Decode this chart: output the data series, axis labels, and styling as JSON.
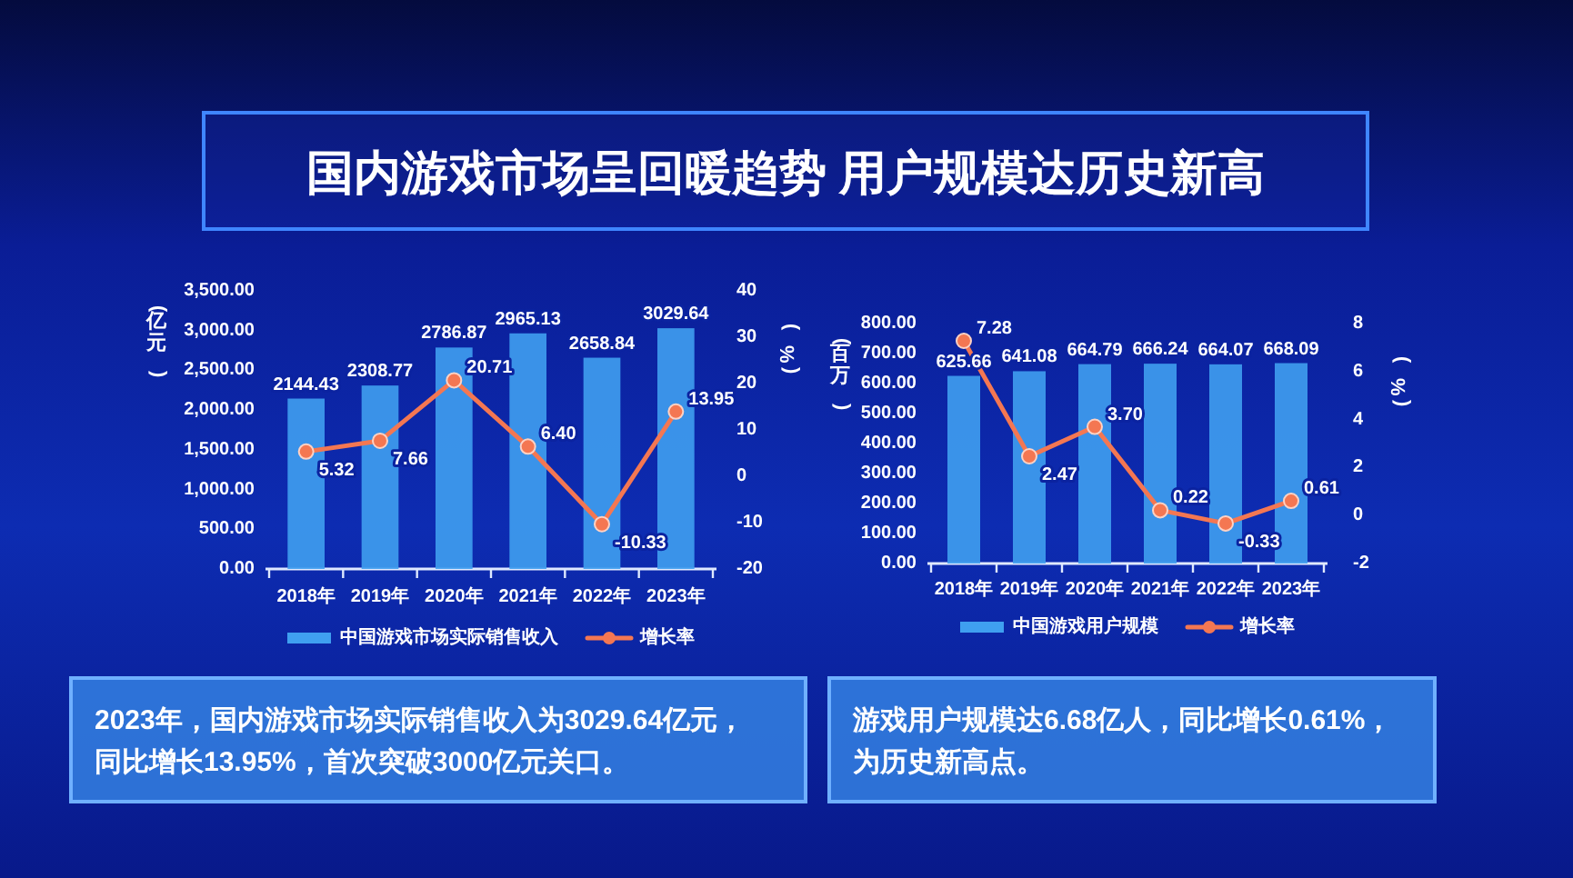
{
  "chart_data": [
    {
      "type": "other",
      "title": "国内游戏市场呈回暖趋势 用户规模达历史新高"
    },
    {
      "type": "bar",
      "categories": [
        "2018年",
        "2019年",
        "2020年",
        "2021年",
        "2022年",
        "2023年"
      ],
      "ylabel": "(亿元)",
      "y2label": "(%)",
      "ylim": [
        0,
        3500
      ],
      "yticks": [
        {
          "value": 0,
          "label": "0.00"
        },
        {
          "value": 500,
          "label": "500.00"
        },
        {
          "value": 1000,
          "label": "1,000.00"
        },
        {
          "value": 1500,
          "label": "1,500.00"
        },
        {
          "value": 2000,
          "label": "2,000.00"
        },
        {
          "value": 2500,
          "label": "2,500.00"
        },
        {
          "value": 3000,
          "label": "3,000.00"
        },
        {
          "value": 3500,
          "label": "3,500.00"
        }
      ],
      "y2lim": [
        -20,
        40
      ],
      "y2ticks": [
        -20,
        -10,
        0,
        10,
        20,
        30,
        40
      ],
      "marker": "circle",
      "legend": "bottom",
      "series": [
        {
          "name": "中国游戏市场实际销售收入",
          "type": "bar",
          "color": "#3f9ff0",
          "values": [
            2144.43,
            2308.77,
            2786.87,
            2965.13,
            2658.84,
            3029.64
          ],
          "value_labels": [
            "2144.43",
            "2308.77",
            "2786.87",
            "2965.13",
            "2658.84",
            "3029.64"
          ]
        },
        {
          "name": "增长率",
          "type": "line",
          "axis": "y2",
          "color": "#f47752",
          "values": [
            5.32,
            7.66,
            20.71,
            6.4,
            -10.33,
            13.95
          ],
          "value_labels": [
            "5.32",
            "7.66",
            "20.71",
            "6.40",
            "-10.33",
            "13.95"
          ]
        }
      ],
      "annotations": [
        "2023年，国内游戏市场实际销售收入为3029.64亿元，同比增长13.95%，首次突破3000亿元关口。"
      ]
    },
    {
      "type": "bar",
      "categories": [
        "2018年",
        "2019年",
        "2020年",
        "2021年",
        "2022年",
        "2023年"
      ],
      "ylabel": "(百万)",
      "y2label": "(%)",
      "ylim": [
        0,
        800
      ],
      "yticks": [
        {
          "value": 0,
          "label": "0.00"
        },
        {
          "value": 100,
          "label": "100.00"
        },
        {
          "value": 200,
          "label": "200.00"
        },
        {
          "value": 300,
          "label": "300.00"
        },
        {
          "value": 400,
          "label": "400.00"
        },
        {
          "value": 500,
          "label": "500.00"
        },
        {
          "value": 600,
          "label": "600.00"
        },
        {
          "value": 700,
          "label": "700.00"
        },
        {
          "value": 800,
          "label": "800.00"
        }
      ],
      "y2lim": [
        -2,
        8
      ],
      "y2ticks": [
        -2,
        0,
        2,
        4,
        6,
        8
      ],
      "marker": "circle",
      "legend": "bottom",
      "series": [
        {
          "name": "中国游戏用户规模",
          "type": "bar",
          "color": "#3f9ff0",
          "values": [
            625.66,
            641.08,
            664.79,
            666.24,
            664.07,
            668.09
          ],
          "value_labels": [
            "625.66",
            "641.08",
            "664.79",
            "666.24",
            "664.07",
            "668.09"
          ]
        },
        {
          "name": "增长率",
          "type": "line",
          "axis": "y2",
          "color": "#f47752",
          "values": [
            7.28,
            2.47,
            3.7,
            0.22,
            -0.33,
            0.61
          ],
          "value_labels": [
            "7.28",
            "2.47",
            "3.70",
            "0.22",
            "-0.33",
            "0.61"
          ]
        }
      ],
      "annotations": [
        "游戏用户规模达6.68亿人，同比增长0.61%，为历史新高点。"
      ]
    }
  ]
}
